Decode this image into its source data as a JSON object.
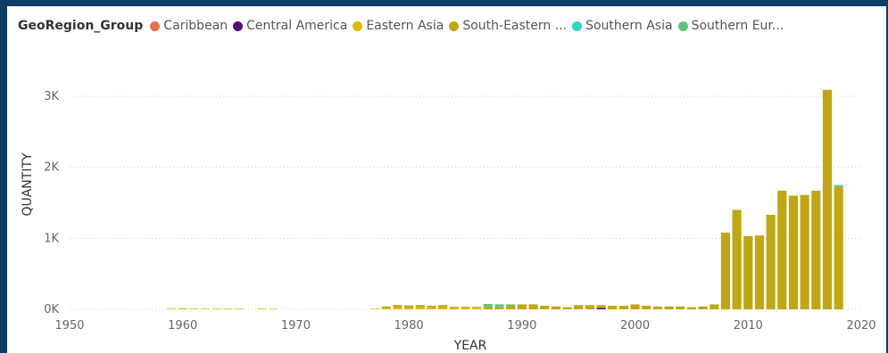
{
  "legend": {
    "title": "GeoRegion_Group",
    "items": [
      {
        "label": "Caribbean",
        "color": "#e8704a"
      },
      {
        "label": "Central America",
        "color": "#5a0d7a"
      },
      {
        "label": "Eastern Asia",
        "color": "#e1b700"
      },
      {
        "label": "South-Eastern ...",
        "color": "#c1a611"
      },
      {
        "label": "Southern Asia",
        "color": "#2ed6c4"
      },
      {
        "label": "Southern Eur...",
        "color": "#58c472"
      }
    ]
  },
  "chart_data": {
    "type": "bar",
    "stacked": true,
    "xlabel": "YEAR",
    "ylabel": "QUANTITY",
    "xlim": [
      1950,
      2020
    ],
    "ylim": [
      0,
      3200
    ],
    "x_ticks": [
      1950,
      1960,
      1970,
      1980,
      1990,
      2000,
      2010,
      2020
    ],
    "y_ticks": [
      {
        "value": 0,
        "label": "0K"
      },
      {
        "value": 1000,
        "label": "1K"
      },
      {
        "value": 2000,
        "label": "2K"
      },
      {
        "value": 3000,
        "label": "3K"
      }
    ],
    "grid": true,
    "legend_position": "top",
    "categories": [
      1959,
      1960,
      1961,
      1962,
      1963,
      1964,
      1965,
      1967,
      1968,
      1977,
      1978,
      1979,
      1980,
      1981,
      1982,
      1983,
      1984,
      1985,
      1986,
      1987,
      1988,
      1989,
      1990,
      1991,
      1992,
      1993,
      1994,
      1995,
      1996,
      1997,
      1998,
      1999,
      2000,
      2001,
      2002,
      2003,
      2004,
      2005,
      2006,
      2007,
      2008,
      2009,
      2010,
      2011,
      2012,
      2013,
      2014,
      2015,
      2016,
      2017,
      2018
    ],
    "series": [
      {
        "name": "Caribbean",
        "color": "#e8704a",
        "values": [
          0,
          0,
          0,
          0,
          0,
          0,
          0,
          0,
          0,
          0,
          0,
          0,
          0,
          0,
          0,
          0,
          0,
          0,
          0,
          0,
          0,
          0,
          0,
          0,
          0,
          0,
          0,
          0,
          0,
          0,
          0,
          0,
          0,
          0,
          0,
          0,
          0,
          0,
          0,
          0,
          0,
          0,
          0,
          0,
          0,
          0,
          0,
          0,
          0,
          0,
          0
        ]
      },
      {
        "name": "Central America",
        "color": "#5a0d7a",
        "values": [
          0,
          0,
          0,
          0,
          0,
          0,
          0,
          0,
          0,
          0,
          0,
          0,
          0,
          0,
          0,
          0,
          0,
          0,
          0,
          0,
          0,
          0,
          0,
          0,
          0,
          0,
          0,
          0,
          0,
          20,
          0,
          0,
          0,
          0,
          0,
          0,
          0,
          0,
          0,
          0,
          0,
          0,
          0,
          0,
          0,
          0,
          0,
          0,
          0,
          0,
          0
        ]
      },
      {
        "name": "Eastern Asia",
        "color": "#e1b700",
        "values": [
          10,
          15,
          10,
          10,
          10,
          10,
          10,
          10,
          8,
          10,
          20,
          30,
          25,
          30,
          30,
          30,
          20,
          20,
          20,
          0,
          0,
          0,
          0,
          0,
          0,
          0,
          0,
          0,
          0,
          0,
          0,
          0,
          0,
          0,
          0,
          0,
          0,
          0,
          0,
          0,
          0,
          0,
          0,
          0,
          0,
          0,
          0,
          0,
          0,
          0,
          0
        ]
      },
      {
        "name": "South-Eastern ...",
        "color": "#c1a611",
        "values": [
          0,
          0,
          0,
          0,
          0,
          0,
          0,
          0,
          0,
          0,
          20,
          30,
          30,
          30,
          20,
          30,
          15,
          15,
          15,
          40,
          30,
          50,
          70,
          70,
          50,
          40,
          30,
          60,
          60,
          40,
          50,
          50,
          70,
          50,
          40,
          40,
          40,
          30,
          40,
          70,
          1080,
          1400,
          1030,
          1040,
          1330,
          1670,
          1600,
          1610,
          1670,
          3090,
          1730
        ]
      },
      {
        "name": "Southern Asia",
        "color": "#2ed6c4",
        "values": [
          0,
          0,
          0,
          0,
          0,
          0,
          0,
          0,
          0,
          0,
          0,
          0,
          0,
          0,
          0,
          0,
          0,
          0,
          0,
          10,
          10,
          0,
          0,
          0,
          0,
          0,
          0,
          0,
          0,
          0,
          0,
          0,
          0,
          0,
          0,
          0,
          0,
          0,
          0,
          0,
          0,
          0,
          0,
          0,
          0,
          0,
          0,
          0,
          0,
          0,
          20
        ]
      },
      {
        "name": "Southern Eur...",
        "color": "#58c472",
        "values": [
          0,
          0,
          0,
          0,
          0,
          0,
          0,
          0,
          0,
          0,
          0,
          0,
          0,
          0,
          0,
          0,
          0,
          0,
          0,
          25,
          30,
          20,
          0,
          0,
          0,
          0,
          0,
          0,
          0,
          0,
          0,
          0,
          0,
          0,
          0,
          0,
          0,
          0,
          0,
          0,
          0,
          0,
          0,
          0,
          0,
          0,
          0,
          0,
          0,
          0,
          0
        ]
      }
    ]
  }
}
